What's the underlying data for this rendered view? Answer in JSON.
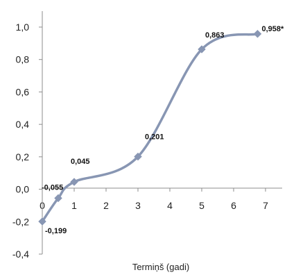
{
  "chart_data": {
    "type": "line",
    "title": "",
    "xlabel": "Termiņš (gadi)",
    "ylabel": "",
    "xlim": [
      0,
      7.5
    ],
    "ylim": [
      -0.4,
      1.0
    ],
    "x_ticks": [
      0,
      1,
      2,
      3,
      4,
      5,
      6,
      7
    ],
    "x_tick_labels": [
      "0",
      "1",
      "2",
      "3",
      "4",
      "5",
      "6",
      "7"
    ],
    "y_ticks": [
      -0.4,
      -0.2,
      0.0,
      0.2,
      0.4,
      0.6,
      0.8,
      1.0
    ],
    "y_tick_labels": [
      "-0,4",
      "-0,2",
      "0,0",
      "0,2",
      "0,4",
      "0,6",
      "0,8",
      "1,0"
    ],
    "grid": false,
    "smooth": true,
    "series": [
      {
        "color": "#8896b3",
        "marker": "diamond",
        "x": [
          0.0,
          0.5,
          1.0,
          3.0,
          5.0,
          6.75
        ],
        "values": [
          -0.199,
          -0.055,
          0.045,
          0.201,
          0.863,
          0.958
        ],
        "labels": [
          "-0,199",
          "-0,055",
          "0,045",
          "0,201",
          "0,863",
          "0,958*"
        ]
      }
    ]
  }
}
